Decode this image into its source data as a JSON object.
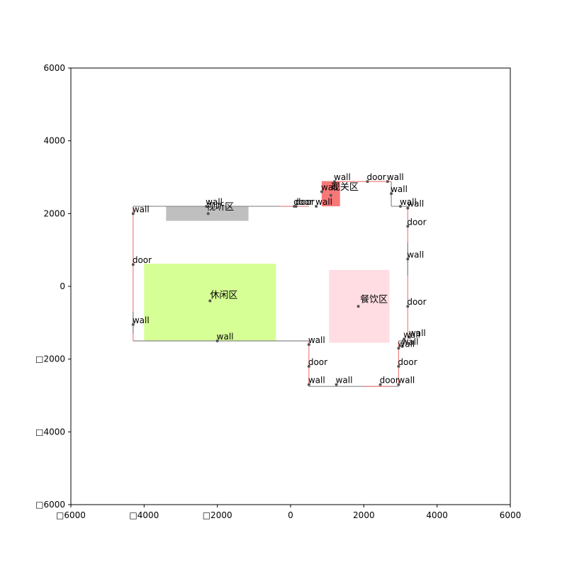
{
  "chart_data": {
    "type": "scatter",
    "title": "",
    "xlabel": "",
    "ylabel": "",
    "xlim": [
      -6000,
      6000
    ],
    "ylim": [
      -6000,
      6000
    ],
    "xticks": [
      {
        "value": -6000,
        "label": "□6000"
      },
      {
        "value": -4000,
        "label": "□4000"
      },
      {
        "value": -2000,
        "label": "□2000"
      },
      {
        "value": 0,
        "label": "0"
      },
      {
        "value": 2000,
        "label": "2000"
      },
      {
        "value": 4000,
        "label": "4000"
      },
      {
        "value": 6000,
        "label": "6000"
      }
    ],
    "yticks": [
      {
        "value": 6000,
        "label": "6000"
      },
      {
        "value": 4000,
        "label": "4000"
      },
      {
        "value": 2000,
        "label": "2000"
      },
      {
        "value": 0,
        "label": "0"
      },
      {
        "value": -2000,
        "label": "□2000"
      },
      {
        "value": -4000,
        "label": "□4000"
      },
      {
        "value": -6000,
        "label": "□6000"
      }
    ],
    "grid": false,
    "zones": [
      {
        "label": "现关区",
        "x0": 850,
        "y0": 2200,
        "x1": 1350,
        "y1": 2880,
        "color": "#f87070",
        "opacity": 0.95,
        "label_x": 1100,
        "label_y": 2650
      },
      {
        "label": "视听区",
        "x0": -3400,
        "y0": 1800,
        "x1": -1150,
        "y1": 2200,
        "color": "#bfbfbf",
        "opacity": 1,
        "label_x": -2300,
        "label_y": 2100
      },
      {
        "label": "休闲区",
        "x0": -4000,
        "y0": -1500,
        "x1": -400,
        "y1": 620,
        "color": "#d6ff95",
        "opacity": 1,
        "label_x": -2200,
        "label_y": -320
      },
      {
        "label": "餐饮区",
        "x0": 1050,
        "y0": -1550,
        "x1": 2700,
        "y1": 450,
        "color": "#ffdde3",
        "opacity": 1,
        "label_x": 1900,
        "label_y": -440
      }
    ],
    "zone_dots": [
      {
        "x": 1100,
        "y": 2500
      },
      {
        "x": -2250,
        "y": 2000
      },
      {
        "x": -2200,
        "y": -400
      },
      {
        "x": 1850,
        "y": -550
      }
    ],
    "segments": [
      {
        "x1": -4300,
        "y1": 2200,
        "x2": 500,
        "y2": 2200,
        "color": "#888888"
      },
      {
        "x1": -4300,
        "y1": 2200,
        "x2": -4300,
        "y2": -1500,
        "color": "#f08080"
      },
      {
        "x1": -4300,
        "y1": -700,
        "x2": -4300,
        "y2": -1300,
        "color": "#888888"
      },
      {
        "x1": -4300,
        "y1": -1500,
        "x2": 500,
        "y2": -1500,
        "color": "#888888"
      },
      {
        "x1": 500,
        "y1": -1500,
        "x2": 500,
        "y2": -2750,
        "color": "#f08080"
      },
      {
        "x1": 500,
        "y1": -2750,
        "x2": 2950,
        "y2": -2750,
        "color": "#888888"
      },
      {
        "x1": 2000,
        "y1": -2750,
        "x2": 2750,
        "y2": -2750,
        "color": "#f08080"
      },
      {
        "x1": 2950,
        "y1": -2750,
        "x2": 2950,
        "y2": -1500,
        "color": "#f08080"
      },
      {
        "x1": 2950,
        "y1": -1500,
        "x2": 3200,
        "y2": -1500,
        "color": "#888888"
      },
      {
        "x1": 3200,
        "y1": -1500,
        "x2": 3200,
        "y2": 2200,
        "color": "#f08080"
      },
      {
        "x1": 3200,
        "y1": 1200,
        "x2": 3200,
        "y2": 300,
        "color": "#888888"
      },
      {
        "x1": 2750,
        "y1": 2200,
        "x2": 3200,
        "y2": 2200,
        "color": "#888888"
      },
      {
        "x1": 2750,
        "y1": 2200,
        "x2": 2750,
        "y2": 2880,
        "color": "#888888"
      },
      {
        "x1": 850,
        "y1": 2880,
        "x2": 2750,
        "y2": 2880,
        "color": "#f08080"
      },
      {
        "x1": -300,
        "y1": 2200,
        "x2": 500,
        "y2": 2200,
        "color": "#f08080"
      }
    ],
    "annotations": [
      {
        "text": "wall",
        "x": -4300,
        "y": 2000
      },
      {
        "text": "wall",
        "x": -2300,
        "y": 2200
      },
      {
        "text": "door",
        "x": 100,
        "y": 2200
      },
      {
        "text": "door",
        "x": 150,
        "y": 2200
      },
      {
        "text": "wall",
        "x": 700,
        "y": 2200
      },
      {
        "text": "wall",
        "x": 850,
        "y": 2600
      },
      {
        "text": "wall",
        "x": 1200,
        "y": 2880
      },
      {
        "text": "door",
        "x": 2100,
        "y": 2880
      },
      {
        "text": "wall",
        "x": 2650,
        "y": 2880
      },
      {
        "text": "wall",
        "x": 2750,
        "y": 2550
      },
      {
        "text": "wall",
        "x": 3000,
        "y": 2200
      },
      {
        "text": "wall",
        "x": 3200,
        "y": 2150
      },
      {
        "text": "door",
        "x": 3200,
        "y": 1650
      },
      {
        "text": "wall",
        "x": 3200,
        "y": 750
      },
      {
        "text": "door",
        "x": 3200,
        "y": -550
      },
      {
        "text": "door",
        "x": -4300,
        "y": 600
      },
      {
        "text": "wall",
        "x": -4300,
        "y": -1050
      },
      {
        "text": "wall",
        "x": -2000,
        "y": -1500
      },
      {
        "text": "wall",
        "x": 500,
        "y": -1600
      },
      {
        "text": "door",
        "x": 500,
        "y": -2200
      },
      {
        "text": "wall",
        "x": 500,
        "y": -2700
      },
      {
        "text": "wall",
        "x": 1250,
        "y": -2700
      },
      {
        "text": "door",
        "x": 2450,
        "y": -2700
      },
      {
        "text": "wall",
        "x": 2950,
        "y": -2700
      },
      {
        "text": "wall",
        "x": 3100,
        "y": -1450
      },
      {
        "text": "wall",
        "x": 3250,
        "y": -1400
      },
      {
        "text": "wall",
        "x": 2950,
        "y": -1700
      },
      {
        "text": "wall",
        "x": 3050,
        "y": -1650
      },
      {
        "text": "door",
        "x": 2950,
        "y": -2200
      }
    ]
  },
  "colors": {
    "axis": "#000000",
    "dot": "#555555",
    "background": "#ffffff"
  }
}
